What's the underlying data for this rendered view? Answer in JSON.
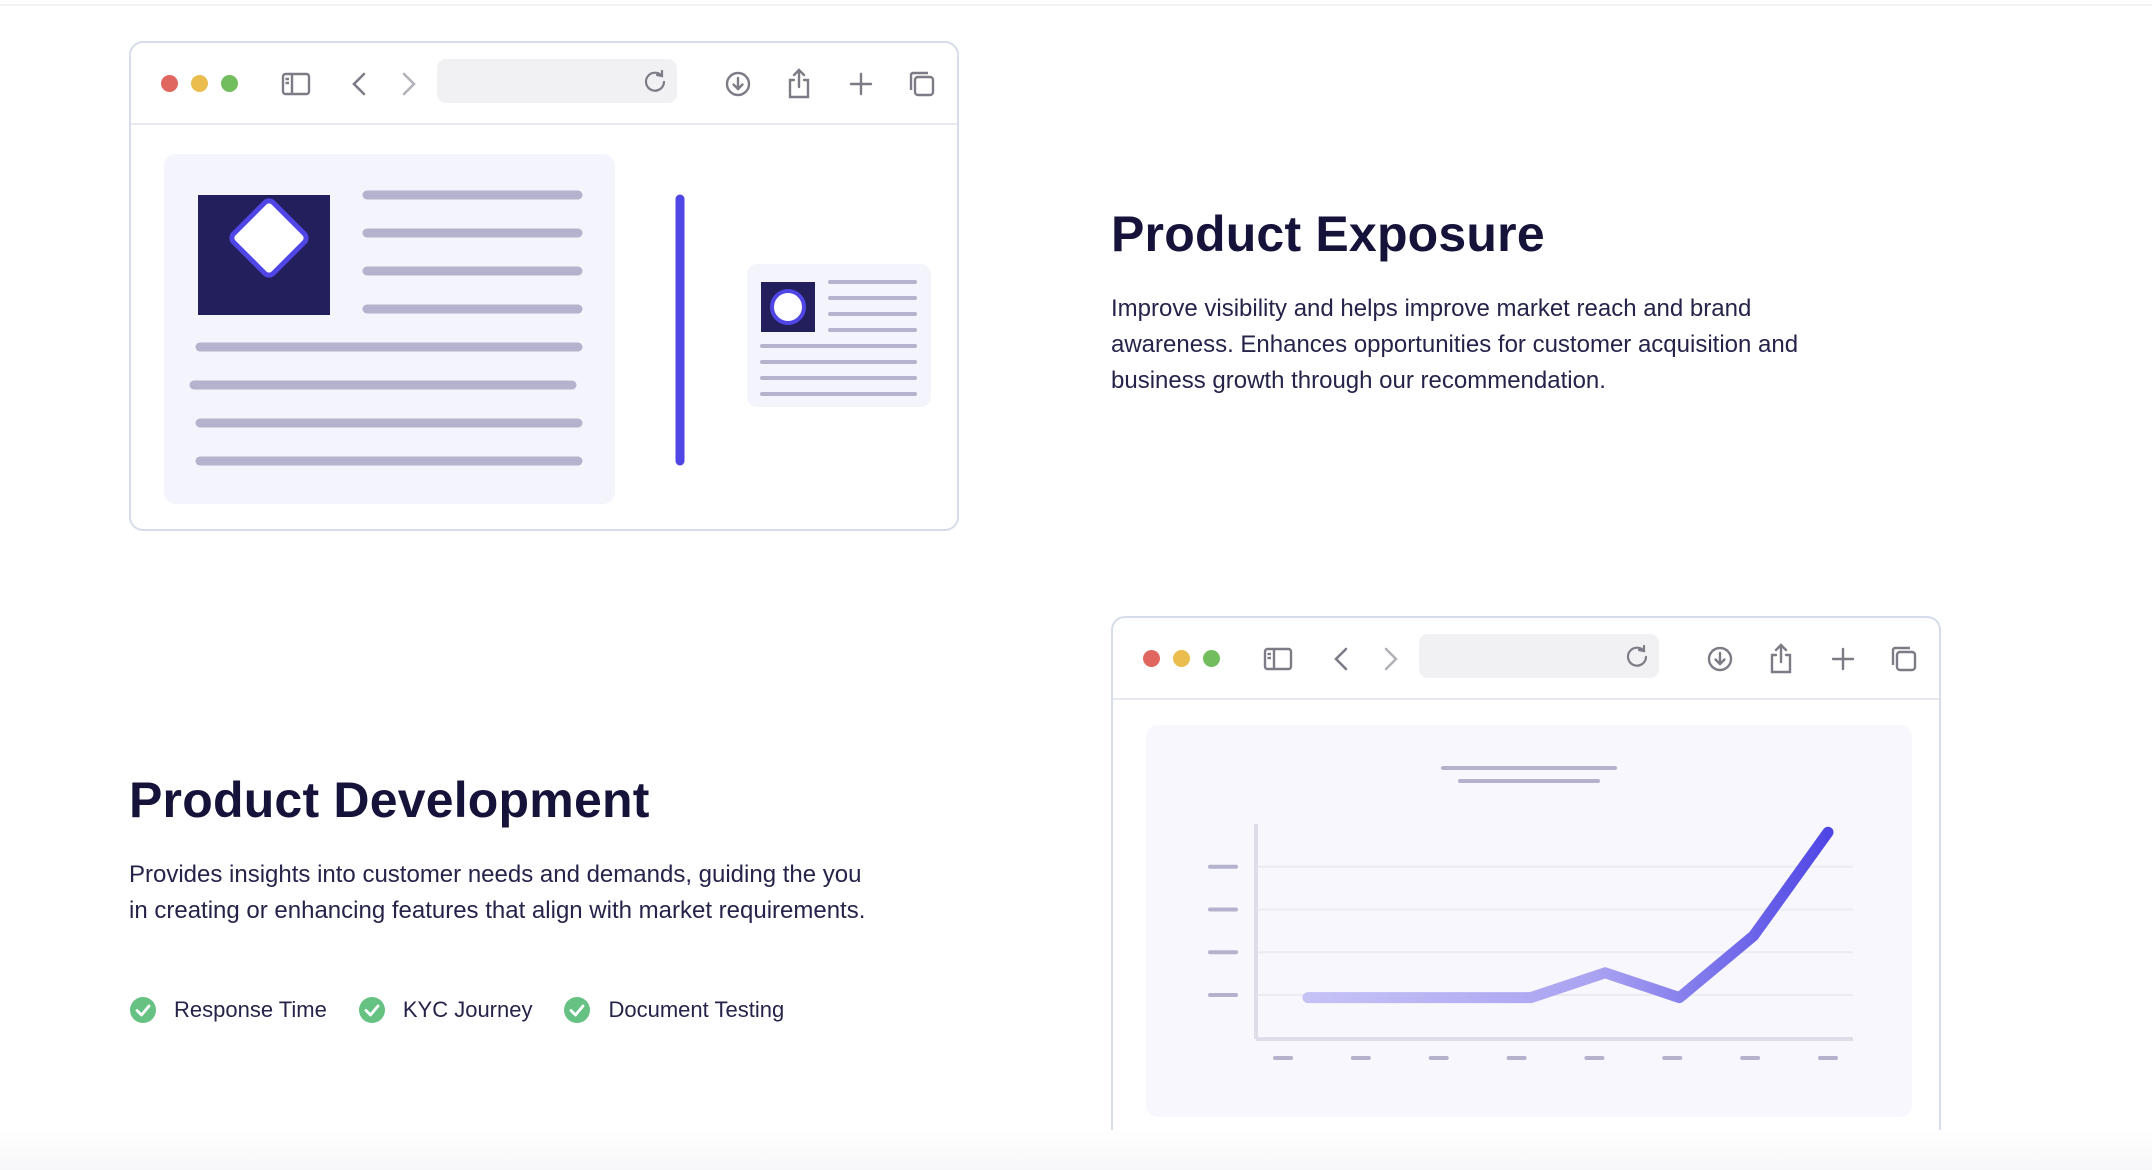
{
  "colors": {
    "heading": "#15133a",
    "accent": "#5046e5",
    "check_green": "#66c283",
    "mock_panel": "#f4f4fc",
    "mock_line": "#b4b2cd",
    "dark_tile": "#231f5c"
  },
  "browser_toolbar": {
    "icons": [
      "sidebar-icon",
      "back-icon",
      "forward-icon",
      "reload-icon",
      "download-icon",
      "share-icon",
      "new-tab-icon",
      "tabs-overview-icon"
    ]
  },
  "product_exposure": {
    "title": "Product Exposure",
    "description": "Improve visibility and helps improve market reach and brand awareness. Enhances opportunities for customer acquisition and business growth through our recommendation."
  },
  "product_development": {
    "title": "Product Development",
    "description": "Provides insights into customer needs and demands, guiding the you in creating or enhancing features that align with market requirements.",
    "features": [
      {
        "label": "Response Time"
      },
      {
        "label": "KYC Journey"
      },
      {
        "label": "Document Testing"
      }
    ]
  },
  "chart_data": {
    "type": "line",
    "title": "",
    "xlabel": "",
    "ylabel": "",
    "x": [
      1,
      2,
      3,
      4,
      5,
      6,
      7,
      8
    ],
    "series": [
      {
        "values": [
          0.3,
          0.3,
          0.3,
          0.3,
          0.9,
          0.3,
          1.8,
          4.3
        ]
      }
    ],
    "ylim": [
      0,
      4.5
    ],
    "grid": true
  }
}
